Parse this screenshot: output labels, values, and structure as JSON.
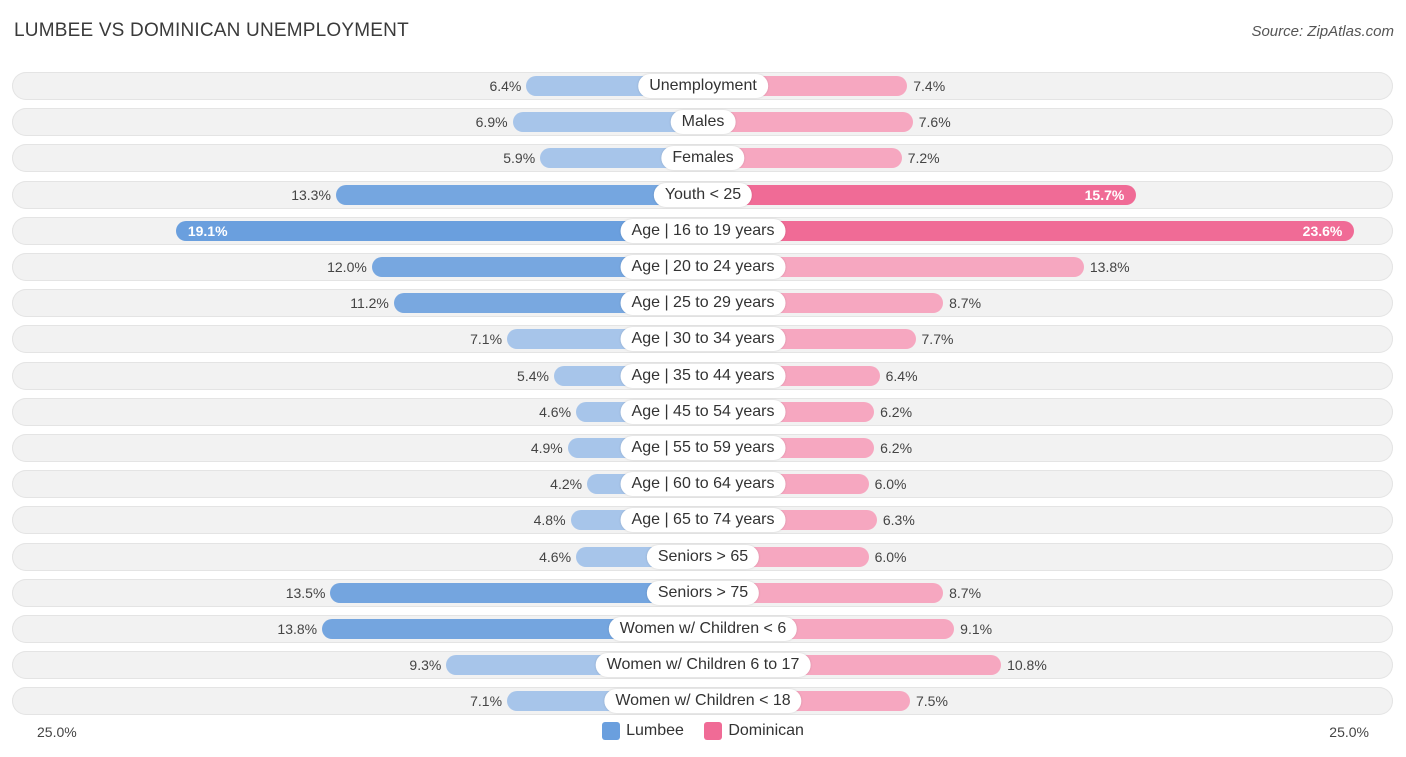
{
  "header": {
    "title": "LUMBEE VS DOMINICAN UNEMPLOYMENT",
    "source": "Source: ZipAtlas.com"
  },
  "legend": {
    "left_label": "Lumbee",
    "right_label": "Dominican"
  },
  "axis": {
    "left_max_label": "25.0%",
    "right_max_label": "25.0%"
  },
  "colors": {
    "lumbee": "#a7c5ea",
    "lumbee_strong": "#6a9fde",
    "dominican": "#f6a7c0",
    "dominican_strong": "#f06b96"
  },
  "chart_data": {
    "type": "bar",
    "orientation": "horizontal-diverging",
    "title": "LUMBEE VS DOMINICAN UNEMPLOYMENT",
    "xlim": [
      0,
      25
    ],
    "categories": [
      "Unemployment",
      "Males",
      "Females",
      "Youth < 25",
      "Age | 16 to 19 years",
      "Age | 20 to 24 years",
      "Age | 25 to 29 years",
      "Age | 30 to 34 years",
      "Age | 35 to 44 years",
      "Age | 45 to 54 years",
      "Age | 55 to 59 years",
      "Age | 60 to 64 years",
      "Age | 65 to 74 years",
      "Seniors > 65",
      "Seniors > 75",
      "Women w/ Children < 6",
      "Women w/ Children 6 to 17",
      "Women w/ Children < 18"
    ],
    "series": [
      {
        "name": "Lumbee",
        "values": [
          6.4,
          6.9,
          5.9,
          13.3,
          19.1,
          12.0,
          11.2,
          7.1,
          5.4,
          4.6,
          4.9,
          4.2,
          4.8,
          4.6,
          13.5,
          13.8,
          9.3,
          7.1
        ],
        "labels": [
          "6.4%",
          "6.9%",
          "5.9%",
          "13.3%",
          "19.1%",
          "12.0%",
          "11.2%",
          "7.1%",
          "5.4%",
          "4.6%",
          "4.9%",
          "4.2%",
          "4.8%",
          "4.6%",
          "13.5%",
          "13.8%",
          "9.3%",
          "7.1%"
        ]
      },
      {
        "name": "Dominican",
        "values": [
          7.4,
          7.6,
          7.2,
          15.7,
          23.6,
          13.8,
          8.7,
          7.7,
          6.4,
          6.2,
          6.2,
          6.0,
          6.3,
          6.0,
          8.7,
          9.1,
          10.8,
          7.5
        ],
        "labels": [
          "7.4%",
          "7.6%",
          "7.2%",
          "15.7%",
          "23.6%",
          "13.8%",
          "8.7%",
          "7.7%",
          "6.4%",
          "6.2%",
          "6.2%",
          "6.0%",
          "6.3%",
          "6.0%",
          "8.7%",
          "9.1%",
          "10.8%",
          "7.5%"
        ]
      }
    ]
  }
}
